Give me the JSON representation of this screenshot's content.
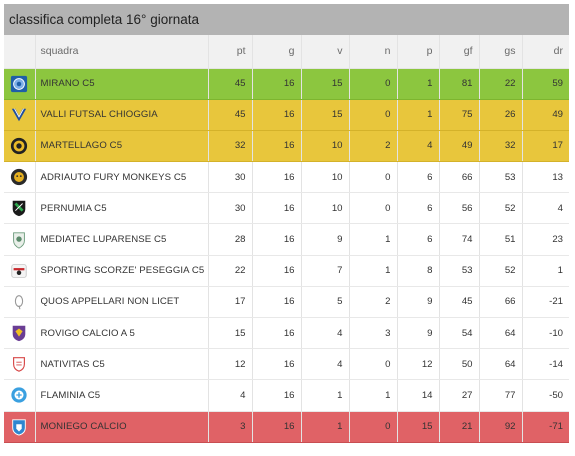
{
  "header": {
    "title": "classifica completa 16° giornata"
  },
  "columns": {
    "squadra": "squadra",
    "pt": "pt",
    "g": "g",
    "v": "v",
    "n": "n",
    "p": "p",
    "gf": "gf",
    "gs": "gs",
    "dr": "dr"
  },
  "colors": {
    "green": "#8cc63f",
    "yellow": "#e8c63c",
    "red": "#e06266",
    "header_bg": "#b3b3b3"
  },
  "rows": [
    {
      "squadra": "MIRANO C5",
      "pt": "45",
      "g": "16",
      "v": "15",
      "n": "0",
      "p": "1",
      "gf": "81",
      "gs": "22",
      "dr": "59",
      "zone": "green",
      "logo_icon": "mirano-logo-icon"
    },
    {
      "squadra": "VALLI FUTSAL CHIOGGIA",
      "pt": "45",
      "g": "16",
      "v": "15",
      "n": "0",
      "p": "1",
      "gf": "75",
      "gs": "26",
      "dr": "49",
      "zone": "yellow",
      "logo_icon": "valli-logo-icon"
    },
    {
      "squadra": "MARTELLAGO C5",
      "pt": "32",
      "g": "16",
      "v": "10",
      "n": "2",
      "p": "4",
      "gf": "49",
      "gs": "32",
      "dr": "17",
      "zone": "yellow",
      "logo_icon": "martellago-logo-icon"
    },
    {
      "squadra": "ADRIAUTO FURY MONKEYS C5",
      "pt": "30",
      "g": "16",
      "v": "10",
      "n": "0",
      "p": "6",
      "gf": "66",
      "gs": "53",
      "dr": "13",
      "zone": "white",
      "logo_icon": "adriauto-logo-icon"
    },
    {
      "squadra": "PERNUMIA C5",
      "pt": "30",
      "g": "16",
      "v": "10",
      "n": "0",
      "p": "6",
      "gf": "56",
      "gs": "52",
      "dr": "4",
      "zone": "white",
      "logo_icon": "pernumia-logo-icon"
    },
    {
      "squadra": "MEDIATEC LUPARENSE C5",
      "pt": "28",
      "g": "16",
      "v": "9",
      "n": "1",
      "p": "6",
      "gf": "74",
      "gs": "51",
      "dr": "23",
      "zone": "white",
      "logo_icon": "luparense-logo-icon"
    },
    {
      "squadra": "SPORTING SCORZE' PESEGGIA C5",
      "pt": "22",
      "g": "16",
      "v": "7",
      "n": "1",
      "p": "8",
      "gf": "53",
      "gs": "52",
      "dr": "1",
      "zone": "white",
      "logo_icon": "sporting-logo-icon"
    },
    {
      "squadra": "QUOS APPELLARI NON LICET",
      "pt": "17",
      "g": "16",
      "v": "5",
      "n": "2",
      "p": "9",
      "gf": "45",
      "gs": "66",
      "dr": "-21",
      "zone": "white",
      "logo_icon": "quos-logo-icon"
    },
    {
      "squadra": "ROVIGO CALCIO A 5",
      "pt": "15",
      "g": "16",
      "v": "4",
      "n": "3",
      "p": "9",
      "gf": "54",
      "gs": "64",
      "dr": "-10",
      "zone": "white",
      "logo_icon": "rovigo-logo-icon"
    },
    {
      "squadra": "NATIVITAS C5",
      "pt": "12",
      "g": "16",
      "v": "4",
      "n": "0",
      "p": "12",
      "gf": "50",
      "gs": "64",
      "dr": "-14",
      "zone": "white",
      "logo_icon": "nativitas-logo-icon"
    },
    {
      "squadra": "FLAMINIA C5",
      "pt": "4",
      "g": "16",
      "v": "1",
      "n": "1",
      "p": "14",
      "gf": "27",
      "gs": "77",
      "dr": "-50",
      "zone": "white",
      "logo_icon": "flaminia-logo-icon"
    },
    {
      "squadra": "MONIEGO CALCIO",
      "pt": "3",
      "g": "16",
      "v": "1",
      "n": "0",
      "p": "15",
      "gf": "21",
      "gs": "92",
      "dr": "-71",
      "zone": "red",
      "logo_icon": "moniego-logo-icon"
    }
  ]
}
